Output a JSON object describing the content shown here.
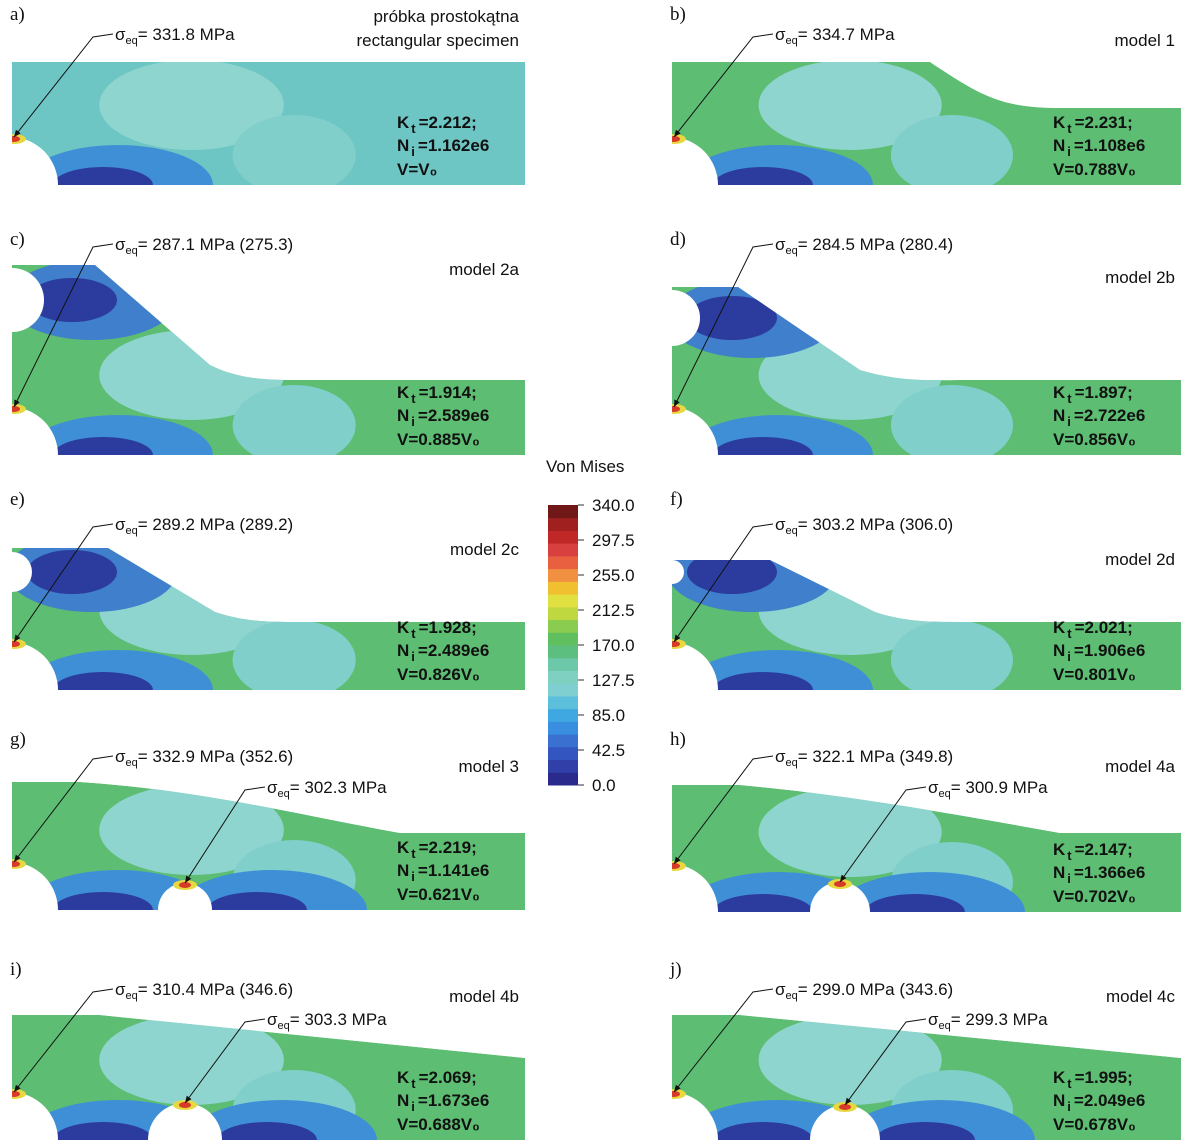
{
  "symbols": {
    "sigma": "σ",
    "sigma_sub": "eq",
    "k": "K",
    "k_sub": "t",
    "n": "N",
    "n_sub": "i"
  },
  "colorbar": {
    "title": "Von Mises",
    "ticks": [
      {
        "value": 340,
        "label": "340.0"
      },
      {
        "value": 297.5,
        "label": "297.5"
      },
      {
        "value": 255,
        "label": "255.0"
      },
      {
        "value": 212.5,
        "label": "212.5"
      },
      {
        "value": 170,
        "label": "170.0"
      },
      {
        "value": 127.5,
        "label": "127.5"
      },
      {
        "value": 85,
        "label": "85.0"
      },
      {
        "value": 42.5,
        "label": "42.5"
      },
      {
        "value": 0,
        "label": "0.0"
      }
    ]
  },
  "panels": [
    {
      "letter": "a)",
      "model": [
        "próbka prostokątna",
        "rectangular specimen"
      ],
      "stress": [
        "= 331.8 MPa"
      ],
      "kt": "=2.212;",
      "ni": "=1.162e6",
      "v": "V=V₀"
    },
    {
      "letter": "b)",
      "model": [
        "model 1"
      ],
      "stress": [
        "= 334.7 MPa"
      ],
      "kt": "=2.231;",
      "ni": "=1.108e6",
      "v": "V=0.788V₀"
    },
    {
      "letter": "c)",
      "model": [
        "model 2a"
      ],
      "stress": [
        "= 287.1 MPa (275.3)"
      ],
      "kt": "=1.914;",
      "ni": "=2.589e6",
      "v": "V=0.885V₀"
    },
    {
      "letter": "d)",
      "model": [
        "model 2b"
      ],
      "stress": [
        "= 284.5 MPa (280.4)"
      ],
      "kt": "=1.897;",
      "ni": "=2.722e6",
      "v": "V=0.856V₀"
    },
    {
      "letter": "e)",
      "model": [
        "model 2c"
      ],
      "stress": [
        "= 289.2 MPa (289.2)"
      ],
      "kt": "=1.928;",
      "ni": "=2.489e6",
      "v": "V=0.826V₀"
    },
    {
      "letter": "f)",
      "model": [
        "model 2d"
      ],
      "stress": [
        "= 303.2 MPa (306.0)"
      ],
      "kt": "=2.021;",
      "ni": "=1.906e6",
      "v": "V=0.801V₀"
    },
    {
      "letter": "g)",
      "model": [
        "model 3"
      ],
      "stress": [
        "= 332.9 MPa (352.6)",
        "= 302.3 MPa"
      ],
      "kt": "=2.219;",
      "ni": "=1.141e6",
      "v": "V=0.621V₀"
    },
    {
      "letter": "h)",
      "model": [
        "model 4a"
      ],
      "stress": [
        "= 322.1 MPa (349.8)",
        "= 300.9 MPa"
      ],
      "kt": "=2.147;",
      "ni": "=1.366e6",
      "v": "V=0.702V₀"
    },
    {
      "letter": "i)",
      "model": [
        "model 4b"
      ],
      "stress": [
        "= 310.4 MPa (346.6)",
        "= 303.3 MPa"
      ],
      "kt": "=2.069;",
      "ni": "=1.673e6",
      "v": "V=0.688V₀"
    },
    {
      "letter": "j)",
      "model": [
        "model 4c"
      ],
      "stress": [
        "= 299.0 MPa (343.6)",
        "= 299.3 MPa"
      ],
      "kt": "=1.995;",
      "ni": "=2.049e6",
      "v": "V=0.678V₀"
    }
  ]
}
